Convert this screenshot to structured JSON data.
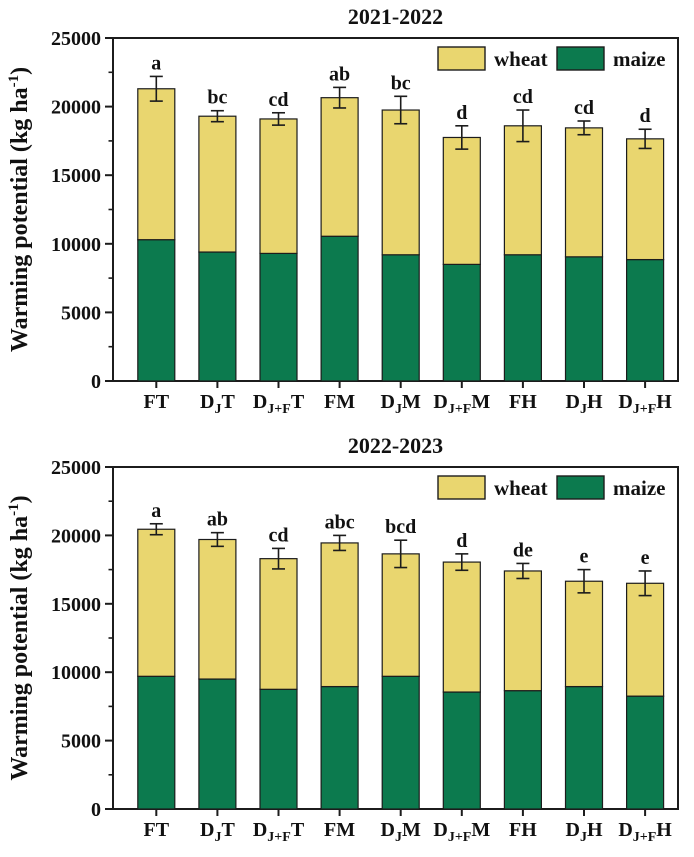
{
  "figure": {
    "background": "#ffffff",
    "panels": [
      "2021-2022",
      "2022-2023"
    ]
  },
  "colors": {
    "wheat": "#e9d66f",
    "maize": "#0c7a4e",
    "axis": "#1c1c1c",
    "text": "#111111"
  },
  "chart_data": [
    {
      "type": "bar",
      "stacked": true,
      "title": "2021-2022",
      "ylabel": "Warming potential (kg ha-1)",
      "ylabel_parts": [
        {
          "t": "Warming potential (kg ha"
        },
        {
          "t": "-1",
          "sup": true
        },
        {
          "t": ")"
        }
      ],
      "xlabel": "",
      "ylim": [
        0,
        25000
      ],
      "yticks": [
        0,
        5000,
        10000,
        15000,
        20000,
        25000
      ],
      "ytick_labels": [
        "0",
        "5000",
        "10000",
        "15000",
        "20000",
        "25000"
      ],
      "minor_tick_step": 2500,
      "grid": false,
      "legend": {
        "position": "top-right-inside",
        "entries": [
          {
            "label": "wheat",
            "color": "#e9d66f"
          },
          {
            "label": "maize",
            "color": "#0c7a4e"
          }
        ]
      },
      "categories": [
        "FT",
        "DJT",
        "DJ+FT",
        "FM",
        "DJM",
        "DJ+FM",
        "FH",
        "DJH",
        "DJ+FH"
      ],
      "categories_display": [
        [
          {
            "t": "FT"
          }
        ],
        [
          {
            "t": "D"
          },
          {
            "t": "J",
            "sub": true
          },
          {
            "t": "T"
          }
        ],
        [
          {
            "t": "D"
          },
          {
            "t": "J+F",
            "sub": true
          },
          {
            "t": "T"
          }
        ],
        [
          {
            "t": "FM"
          }
        ],
        [
          {
            "t": "D"
          },
          {
            "t": "J",
            "sub": true
          },
          {
            "t": "M"
          }
        ],
        [
          {
            "t": "D"
          },
          {
            "t": "J+F",
            "sub": true
          },
          {
            "t": "M"
          }
        ],
        [
          {
            "t": "FH"
          }
        ],
        [
          {
            "t": "D"
          },
          {
            "t": "J",
            "sub": true
          },
          {
            "t": "H"
          }
        ],
        [
          {
            "t": "D"
          },
          {
            "t": "J+F",
            "sub": true
          },
          {
            "t": "H"
          }
        ]
      ],
      "series": [
        {
          "name": "maize",
          "color": "#0c7a4e",
          "values": [
            10300,
            9400,
            9300,
            10550,
            9200,
            8500,
            9200,
            9050,
            8850
          ]
        },
        {
          "name": "wheat",
          "color": "#e9d66f",
          "values": [
            11000,
            9900,
            9800,
            10100,
            10550,
            9250,
            9400,
            9400,
            8800
          ]
        }
      ],
      "totals": [
        21300,
        19300,
        19100,
        20650,
        19750,
        17750,
        18600,
        18450,
        17650
      ],
      "error_bars": [
        900,
        400,
        450,
        750,
        1000,
        850,
        1150,
        500,
        700
      ],
      "sig_letters": [
        "a",
        "bc",
        "cd",
        "ab",
        "bc",
        "d",
        "cd",
        "cd",
        "d"
      ]
    },
    {
      "type": "bar",
      "stacked": true,
      "title": "2022-2023",
      "ylabel": "Warming potential (kg ha-1)",
      "ylabel_parts": [
        {
          "t": "Warming potential (kg ha"
        },
        {
          "t": "-1",
          "sup": true
        },
        {
          "t": ")"
        }
      ],
      "xlabel": "",
      "ylim": [
        0,
        25000
      ],
      "yticks": [
        0,
        5000,
        10000,
        15000,
        20000,
        25000
      ],
      "ytick_labels": [
        "0",
        "5000",
        "10000",
        "15000",
        "20000",
        "25000"
      ],
      "minor_tick_step": 2500,
      "grid": false,
      "legend": {
        "position": "top-right-inside",
        "entries": [
          {
            "label": "wheat",
            "color": "#e9d66f"
          },
          {
            "label": "maize",
            "color": "#0c7a4e"
          }
        ]
      },
      "categories": [
        "FT",
        "DJT",
        "DJ+FT",
        "FM",
        "DJM",
        "DJ+FM",
        "FH",
        "DJH",
        "DJ+FH"
      ],
      "categories_display": [
        [
          {
            "t": "FT"
          }
        ],
        [
          {
            "t": "D"
          },
          {
            "t": "J",
            "sub": true
          },
          {
            "t": "T"
          }
        ],
        [
          {
            "t": "D"
          },
          {
            "t": "J+F",
            "sub": true
          },
          {
            "t": "T"
          }
        ],
        [
          {
            "t": "FM"
          }
        ],
        [
          {
            "t": "D"
          },
          {
            "t": "J",
            "sub": true
          },
          {
            "t": "M"
          }
        ],
        [
          {
            "t": "D"
          },
          {
            "t": "J+F",
            "sub": true
          },
          {
            "t": "M"
          }
        ],
        [
          {
            "t": "FH"
          }
        ],
        [
          {
            "t": "D"
          },
          {
            "t": "J",
            "sub": true
          },
          {
            "t": "H"
          }
        ],
        [
          {
            "t": "D"
          },
          {
            "t": "J+F",
            "sub": true
          },
          {
            "t": "H"
          }
        ]
      ],
      "series": [
        {
          "name": "maize",
          "color": "#0c7a4e",
          "values": [
            9700,
            9500,
            8750,
            8950,
            9700,
            8550,
            8650,
            8950,
            8250
          ]
        },
        {
          "name": "wheat",
          "color": "#e9d66f",
          "values": [
            10750,
            10200,
            9550,
            10500,
            8950,
            9500,
            8750,
            7700,
            8250
          ]
        }
      ],
      "totals": [
        20450,
        19700,
        18300,
        19450,
        18650,
        18050,
        17400,
        16650,
        16500
      ],
      "error_bars": [
        400,
        500,
        750,
        550,
        1000,
        600,
        550,
        850,
        900
      ],
      "sig_letters": [
        "a",
        "ab",
        "cd",
        "abc",
        "bcd",
        "d",
        "de",
        "e",
        "e"
      ]
    }
  ]
}
